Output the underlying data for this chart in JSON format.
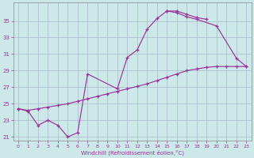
{
  "xlabel": "Windchill (Refroidissement éolien,°C)",
  "bg_color": "#cce8e8",
  "grid_color": "#aab8cc",
  "line_color": "#993399",
  "xlim": [
    -0.5,
    23.5
  ],
  "ylim": [
    20.5,
    37.2
  ],
  "xticks": [
    0,
    1,
    2,
    3,
    4,
    5,
    6,
    7,
    8,
    9,
    10,
    11,
    12,
    13,
    14,
    15,
    16,
    17,
    18,
    19,
    20,
    21,
    22,
    23
  ],
  "yticks": [
    21,
    23,
    25,
    27,
    29,
    31,
    33,
    35
  ],
  "lineA_x": [
    0,
    1,
    2,
    3,
    4,
    5,
    6,
    7,
    10,
    11,
    12,
    13,
    14,
    15,
    16,
    17,
    18,
    19
  ],
  "lineA_y": [
    24.4,
    24.1,
    22.4,
    23.0,
    22.4,
    21.0,
    21.5,
    28.6,
    26.8,
    30.6,
    31.5,
    34.0,
    35.3,
    36.2,
    36.2,
    35.8,
    35.4,
    35.2
  ],
  "lineB_x": [
    0,
    1,
    2,
    3,
    4,
    5,
    6,
    7,
    8,
    9,
    10,
    11,
    12,
    13,
    14,
    15,
    16,
    17,
    18,
    19,
    20,
    21,
    22,
    23
  ],
  "lineB_y": [
    24.4,
    24.2,
    24.4,
    24.6,
    24.8,
    25.0,
    25.3,
    25.6,
    25.9,
    26.2,
    26.5,
    26.8,
    27.1,
    27.4,
    27.8,
    28.2,
    28.6,
    29.0,
    29.2,
    29.4,
    29.5,
    29.5,
    29.5,
    29.5
  ],
  "lineC_x": [
    15,
    16,
    17,
    18,
    20,
    22,
    23
  ],
  "lineC_y": [
    36.2,
    36.0,
    35.5,
    35.2,
    34.4,
    30.5,
    29.5
  ]
}
